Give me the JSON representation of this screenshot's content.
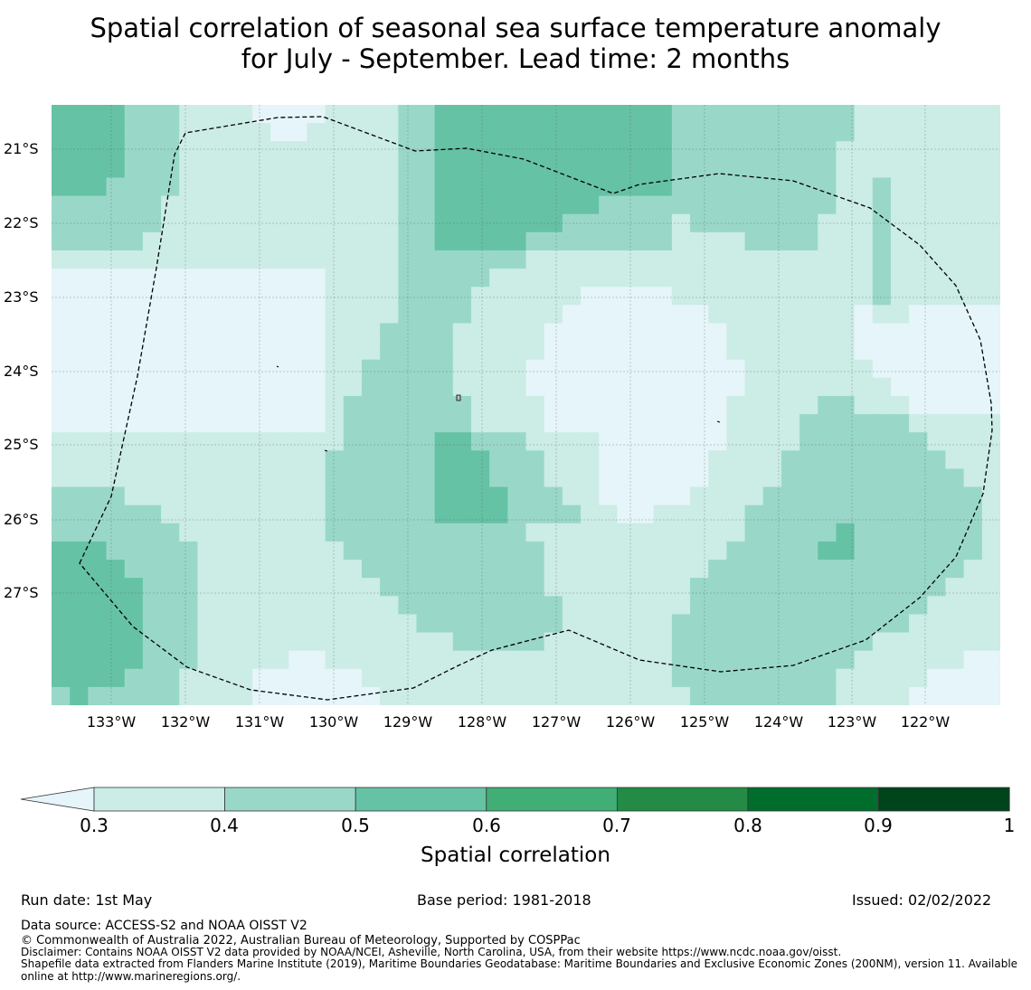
{
  "title": {
    "line1": "Spatial correlation of seasonal sea surface temperature anomaly",
    "line2": "for July - September. Lead time: 2 months"
  },
  "map": {
    "lat_labels": [
      "21°S",
      "22°S",
      "23°S",
      "24°S",
      "25°S",
      "26°S",
      "27°S"
    ],
    "lon_labels": [
      "133°W",
      "132°W",
      "131°W",
      "130°W",
      "129°W",
      "128°W",
      "127°W",
      "126°W",
      "125°W",
      "124°W",
      "123°W",
      "122°W"
    ],
    "boundary": "dashed EEZ outline (200NM)",
    "gridlines": true
  },
  "colorbar": {
    "ticks": [
      "0.3",
      "0.4",
      "0.5",
      "0.6",
      "0.7",
      "0.8",
      "0.9",
      "1"
    ],
    "colors": [
      "#e5f5f9",
      "#ccece6",
      "#99d8c9",
      "#66c2a4",
      "#41ae76",
      "#238b45",
      "#006d2c",
      "#00441b"
    ],
    "label": "Spatial correlation",
    "extend": "min"
  },
  "meta": {
    "run_date": "Run date: 1st May",
    "base_period": "Base period: 1981-2018",
    "issued": "Issued: 02/02/2022",
    "data_source": "Data source: ACCESS-S2 and NOAA OISST V2",
    "copyright": "© Commonwealth of Australia 2022, Australian Bureau of Meteorology, Supported by COSPPac",
    "disclaimer": "Disclaimer: Contains NOAA OISST V2 data provided by NOAA/NCEI, Asheville, North Carolina, USA, from their website https://www.ncdc.noaa.gov/oisst.",
    "shapefile_1": "Shapefile data extracted from Flanders Marine Institute (2019), Maritime Boundaries Geodatabase: Maritime Boundaries and Exclusive Economic Zones (200NM), version 11. Available",
    "shapefile_2": "online at http://www.marineregions.org/."
  }
}
